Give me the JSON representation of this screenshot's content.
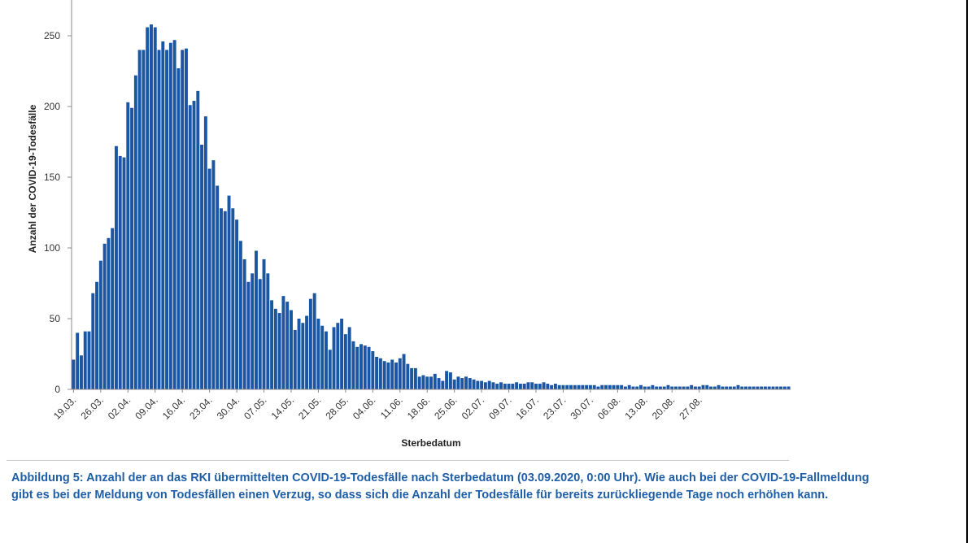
{
  "chart_data": {
    "type": "bar",
    "title": "",
    "xlabel": "Sterbedatum",
    "ylabel": "Anzahl der COVID-19-Todesfälle",
    "ylim": [
      0,
      270
    ],
    "yticks": [
      0,
      50,
      100,
      150,
      200,
      250
    ],
    "start_date": "19.03.",
    "tick_every_days": 7,
    "x_tick_labels": [
      "19.03.",
      "26.03.",
      "02.04.",
      "09.04.",
      "16.04.",
      "23.04.",
      "30.04.",
      "07.05.",
      "14.05.",
      "21.05.",
      "28.05.",
      "04.06.",
      "11.06.",
      "18.06.",
      "25.06.",
      "02.07.",
      "09.07.",
      "16.07.",
      "23.07.",
      "30.07.",
      "06.08.",
      "13.08.",
      "20.08.",
      "27.08."
    ],
    "bar_color": "#1a56a4",
    "grid": false,
    "legend": "none",
    "values": [
      21,
      40,
      24,
      41,
      41,
      68,
      76,
      91,
      103,
      107,
      114,
      172,
      165,
      164,
      203,
      199,
      222,
      240,
      240,
      256,
      258,
      256,
      240,
      246,
      240,
      245,
      247,
      227,
      240,
      241,
      201,
      204,
      211,
      173,
      193,
      156,
      162,
      144,
      128,
      126,
      137,
      128,
      120,
      105,
      92,
      76,
      82,
      98,
      78,
      92,
      82,
      63,
      57,
      54,
      66,
      62,
      56,
      42,
      50,
      47,
      52,
      64,
      68,
      50,
      45,
      41,
      28,
      44,
      47,
      50,
      39,
      44,
      34,
      30,
      32,
      31,
      30,
      27,
      23,
      22,
      20,
      19,
      21,
      19,
      22,
      25,
      18,
      15,
      15,
      9,
      10,
      9,
      9,
      11,
      8,
      6,
      13,
      12,
      7,
      9,
      8,
      9,
      8,
      7,
      6,
      6,
      5,
      6,
      5,
      4,
      5,
      4,
      4,
      4,
      5,
      4,
      4,
      5,
      5,
      4,
      4,
      5,
      4,
      3,
      4,
      3,
      3,
      3,
      3,
      3,
      3,
      3,
      3,
      3,
      3,
      2,
      3,
      3,
      3,
      3,
      3,
      3,
      2,
      3,
      2,
      2,
      3,
      2,
      2,
      3,
      2,
      2,
      2,
      3,
      2,
      2,
      2,
      2,
      2,
      3,
      2,
      2,
      3,
      3,
      2,
      2,
      3,
      2,
      2,
      2,
      2,
      3,
      2,
      2,
      2,
      2,
      2,
      2,
      2,
      2,
      2,
      2,
      2,
      2,
      2
    ]
  },
  "caption": {
    "text": "Abbildung 5: Anzahl der an das RKI übermittelten COVID-19-Todesfälle nach Sterbedatum (03.09.2020, 0:00 Uhr). Wie auch bei der COVID-19-Fallmeldung gibt es bei der Meldung von Todesfällen einen Verzug, so dass sich die Anzahl der Todesfälle für bereits zurückliegende Tage noch erhöhen kann."
  }
}
